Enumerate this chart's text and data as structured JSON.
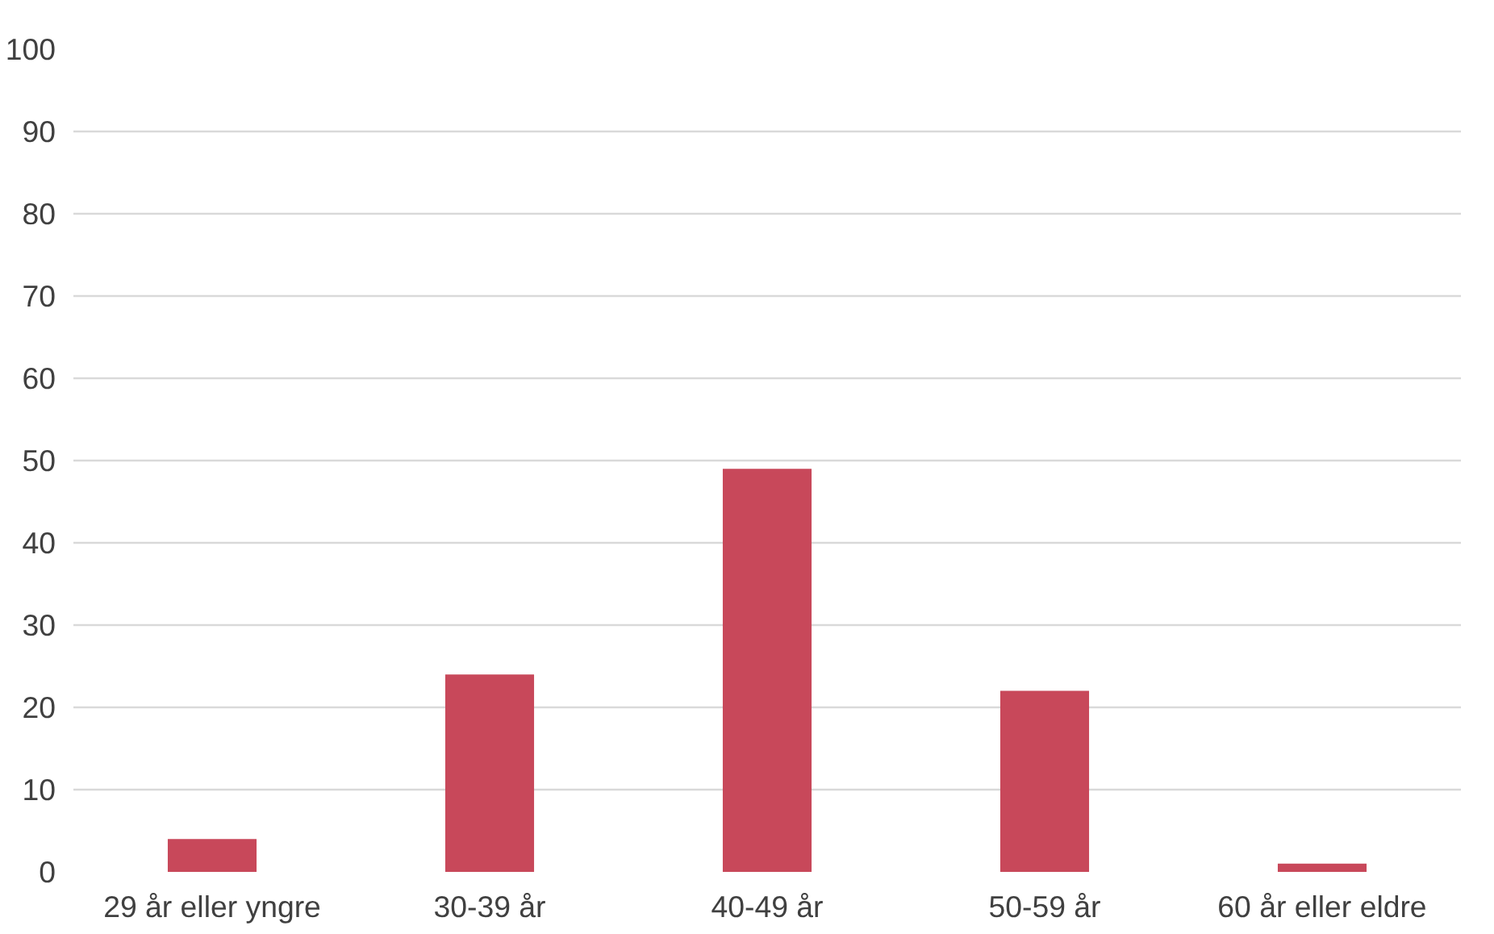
{
  "chart_data": {
    "type": "bar",
    "categories": [
      "29 år eller yngre",
      "30-39 år",
      "40-49 år",
      "50-59 år",
      "60 år eller eldre"
    ],
    "values": [
      4,
      24,
      49,
      22,
      1
    ],
    "color": "#c8485a",
    "ylim": [
      0,
      100
    ],
    "yticks": [
      0,
      10,
      20,
      30,
      40,
      50,
      60,
      70,
      80,
      90,
      100
    ],
    "grid": "y"
  }
}
